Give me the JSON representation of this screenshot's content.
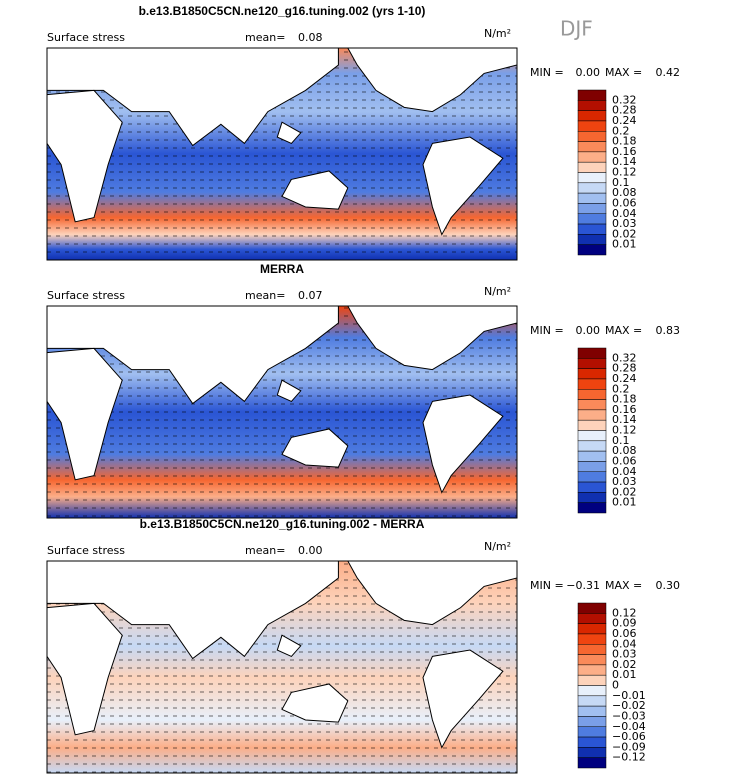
{
  "season": "DJF",
  "panels": [
    {
      "title": "b.e13.B1850C5CN.ne120_g16.tuning.002 (yrs 1-10)",
      "variable": "Surface stress",
      "mean_label": "mean=",
      "mean": "0.08",
      "units": "N/m²",
      "min_label": "MIN =",
      "min": "0.00",
      "max_label": "MAX =",
      "max": "0.42",
      "levels": [
        "0.32",
        "0.28",
        "0.24",
        "0.2",
        "0.18",
        "0.16",
        "0.14",
        "0.12",
        "0.1",
        "0.08",
        "0.06",
        "0.04",
        "0.03",
        "0.02",
        "0.01"
      ]
    },
    {
      "title": "MERRA",
      "variable": "Surface stress",
      "mean_label": "mean=",
      "mean": "0.07",
      "units": "N/m²",
      "min_label": "MIN =",
      "min": "0.00",
      "max_label": "MAX =",
      "max": "0.83",
      "levels": [
        "0.32",
        "0.28",
        "0.24",
        "0.2",
        "0.18",
        "0.16",
        "0.14",
        "0.12",
        "0.1",
        "0.08",
        "0.06",
        "0.04",
        "0.03",
        "0.02",
        "0.01"
      ]
    },
    {
      "title": "b.e13.B1850C5CN.ne120_g16.tuning.002 - MERRA",
      "variable": "Surface stress",
      "mean_label": "mean=",
      "mean": "0.00",
      "units": "N/m²",
      "min_label": "MIN =",
      "min": "−0.31",
      "max_label": "MAX =",
      "max": "0.30",
      "levels": [
        "0.12",
        "0.09",
        "0.06",
        "0.04",
        "0.03",
        "0.02",
        "0.01",
        "0",
        "−0.01",
        "−0.02",
        "−0.03",
        "−0.04",
        "−0.06",
        "−0.09",
        "−0.12"
      ]
    }
  ],
  "colorbar_colors": [
    "#7f0000",
    "#b30f00",
    "#d92700",
    "#ef4410",
    "#f66630",
    "#fa8a5a",
    "#fcae88",
    "#fdd3bb",
    "#e8f0fb",
    "#c6d9f5",
    "#a1bff0",
    "#7a9fe8",
    "#4f7ce0",
    "#2a55d4",
    "#1030b0",
    "#00007f"
  ]
}
